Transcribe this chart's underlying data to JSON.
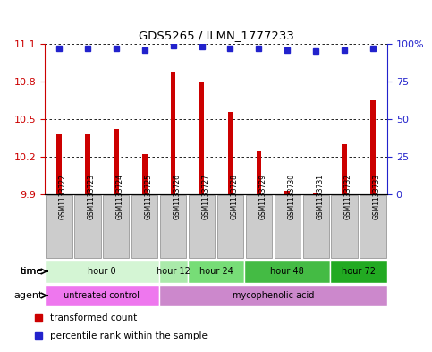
{
  "title": "GDS5265 / ILMN_1777233",
  "samples": [
    "GSM1133722",
    "GSM1133723",
    "GSM1133724",
    "GSM1133725",
    "GSM1133726",
    "GSM1133727",
    "GSM1133728",
    "GSM1133729",
    "GSM1133730",
    "GSM1133731",
    "GSM1133732",
    "GSM1133733"
  ],
  "bar_values": [
    10.38,
    10.38,
    10.42,
    10.22,
    10.88,
    10.8,
    10.56,
    10.24,
    9.93,
    9.91,
    10.3,
    10.65
  ],
  "percentile_values": [
    97,
    97,
    97,
    96,
    99,
    98,
    97,
    97,
    96,
    95,
    96,
    97
  ],
  "ymin": 9.9,
  "ymax": 11.1,
  "yticks": [
    9.9,
    10.2,
    10.5,
    10.8,
    11.1
  ],
  "ytick_labels": [
    "9.9",
    "10.2",
    "10.5",
    "10.8",
    "11.1"
  ],
  "right_yticks": [
    0,
    25,
    50,
    75,
    100
  ],
  "right_ytick_labels": [
    "0",
    "25",
    "50",
    "75",
    "100%"
  ],
  "bar_color": "#cc0000",
  "dot_color": "#2222cc",
  "bar_width": 0.18,
  "time_groups": [
    {
      "label": "hour 0",
      "start": 0,
      "end": 3,
      "color": "#d4f5d4"
    },
    {
      "label": "hour 12",
      "start": 4,
      "end": 4,
      "color": "#aaeaaa"
    },
    {
      "label": "hour 24",
      "start": 5,
      "end": 6,
      "color": "#77dd77"
    },
    {
      "label": "hour 48",
      "start": 7,
      "end": 9,
      "color": "#44bb44"
    },
    {
      "label": "hour 72",
      "start": 10,
      "end": 11,
      "color": "#22aa22"
    }
  ],
  "agent_groups": [
    {
      "label": "untreated control",
      "start": 0,
      "end": 3,
      "color": "#ee77ee"
    },
    {
      "label": "mycophenolic acid",
      "start": 4,
      "end": 11,
      "color": "#cc88cc"
    }
  ],
  "time_label": "time",
  "agent_label": "agent",
  "legend_bar_label": "transformed count",
  "legend_dot_label": "percentile rank within the sample",
  "axis_color_left": "#cc0000",
  "axis_color_right": "#2222cc",
  "sample_box_color": "#cccccc",
  "sample_box_edge": "#888888"
}
